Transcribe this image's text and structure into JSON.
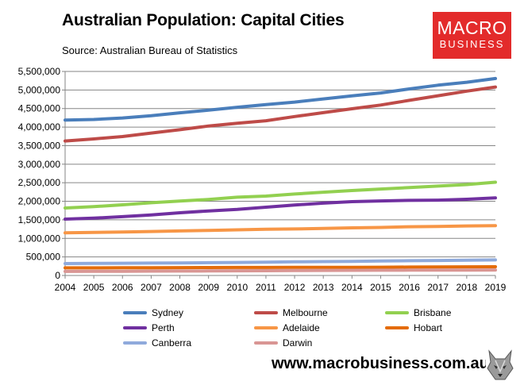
{
  "header": {
    "title": "Australian Population: Capital Cities",
    "source": "Source: Australian Bureau of Statistics"
  },
  "logo": {
    "line1": "MACRO",
    "line2": "BUSINESS",
    "color": "#e32b2b"
  },
  "footer": {
    "website": "www.macrobusiness.com.au",
    "mascot_icon": "wolf-head-icon"
  },
  "chart_data": {
    "type": "line",
    "title": "Australian Population: Capital Cities",
    "xlabel": "",
    "ylabel": "",
    "x": [
      "2004",
      "2005",
      "2006",
      "2007",
      "2008",
      "2009",
      "2010",
      "2011",
      "2012",
      "2013",
      "2014",
      "2015",
      "2016",
      "2017",
      "2018",
      "2019"
    ],
    "ylim": [
      0,
      5500000
    ],
    "y_ticks": [
      {
        "value": 0,
        "label": "0"
      },
      {
        "value": 500000,
        "label": "500,000"
      },
      {
        "value": 1000000,
        "label": "1,000,000"
      },
      {
        "value": 1500000,
        "label": "1,500,000"
      },
      {
        "value": 2000000,
        "label": "2,000,000"
      },
      {
        "value": 2500000,
        "label": "2,500,000"
      },
      {
        "value": 3000000,
        "label": "3,000,000"
      },
      {
        "value": 3500000,
        "label": "3,500,000"
      },
      {
        "value": 4000000,
        "label": "4,000,000"
      },
      {
        "value": 4500000,
        "label": "4,500,000"
      },
      {
        "value": 5000000,
        "label": "5,000,000"
      },
      {
        "value": 5500000,
        "label": "5,500,000"
      }
    ],
    "grid": true,
    "legend_position": "bottom",
    "series": [
      {
        "name": "Sydney",
        "color": "#4a7ebb",
        "values": [
          4190000,
          4205000,
          4245000,
          4305000,
          4385000,
          4455000,
          4535000,
          4605000,
          4675000,
          4760000,
          4840000,
          4920000,
          5030000,
          5130000,
          5210000,
          5310000
        ]
      },
      {
        "name": "Melbourne",
        "color": "#be4b48",
        "values": [
          3625000,
          3680000,
          3745000,
          3840000,
          3930000,
          4030000,
          4105000,
          4170000,
          4285000,
          4390000,
          4495000,
          4595000,
          4720000,
          4845000,
          4970000,
          5080000
        ]
      },
      {
        "name": "Brisbane",
        "color": "#92d050",
        "values": [
          1820000,
          1855000,
          1905000,
          1960000,
          2005000,
          2050000,
          2110000,
          2140000,
          2195000,
          2245000,
          2290000,
          2330000,
          2370000,
          2410000,
          2450000,
          2515000
        ]
      },
      {
        "name": "Perth",
        "color": "#7030a0",
        "values": [
          1520000,
          1545000,
          1585000,
          1630000,
          1690000,
          1740000,
          1780000,
          1840000,
          1900000,
          1950000,
          1990000,
          2010000,
          2025000,
          2030000,
          2055000,
          2090000
        ]
      },
      {
        "name": "Adelaide",
        "color": "#f79646",
        "values": [
          1150000,
          1160000,
          1170000,
          1185000,
          1200000,
          1215000,
          1230000,
          1245000,
          1255000,
          1270000,
          1285000,
          1295000,
          1315000,
          1320000,
          1335000,
          1345000
        ]
      },
      {
        "name": "Hobart",
        "color": "#e46c0a",
        "values": [
          205000,
          206000,
          208000,
          210000,
          212000,
          214000,
          216000,
          217000,
          218000,
          219000,
          221000,
          223000,
          226000,
          229000,
          233000,
          236000
        ]
      },
      {
        "name": "Canberra",
        "color": "#8faadc",
        "values": [
          320000,
          325000,
          330000,
          333000,
          338000,
          345000,
          352000,
          360000,
          368000,
          375000,
          382000,
          390000,
          398000,
          405000,
          412000,
          420000
        ]
      },
      {
        "name": "Darwin",
        "color": "#d99694",
        "values": [
          110000,
          112000,
          114000,
          117000,
          120000,
          123000,
          126000,
          129000,
          132000,
          136000,
          139000,
          142000,
          144000,
          145000,
          146000,
          147000
        ]
      }
    ]
  }
}
